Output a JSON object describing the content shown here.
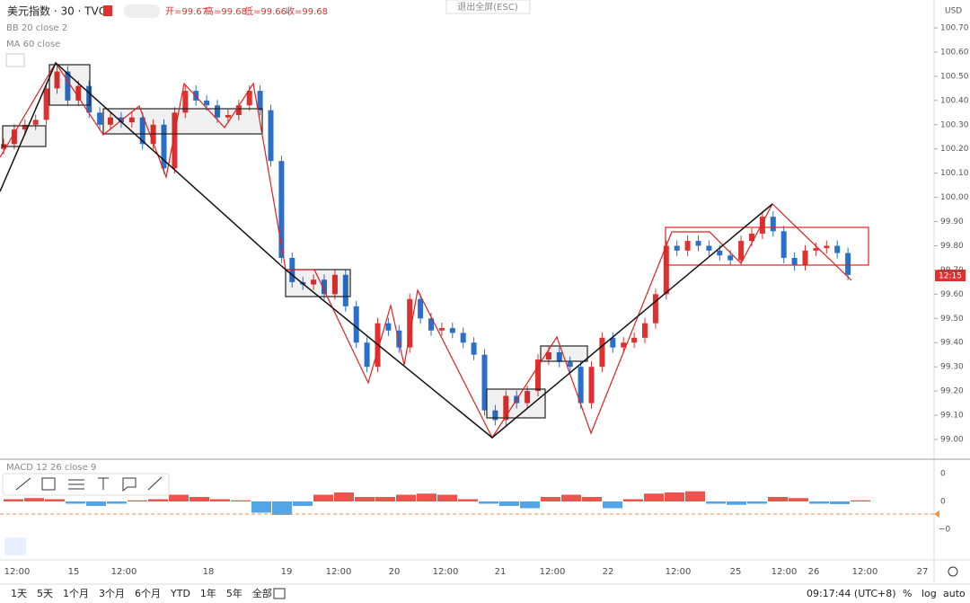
{
  "header": {
    "symbol": "美元指数 · 30 · TVC",
    "open": "开=99.67",
    "high": "高=99.68",
    "low": "低=99.66",
    "close": "收=99.68",
    "exit": "退出全屏(ESC)",
    "currency": "USD"
  },
  "indicators": [
    "BB 20 close 2",
    "MA 60 close",
    "MACD 12 26 close 9"
  ],
  "price_axis": [
    {
      "value": 100.7,
      "label": "100.70"
    },
    {
      "value": 100.6,
      "label": "100.60"
    },
    {
      "value": 100.5,
      "label": "100.50"
    },
    {
      "value": 100.4,
      "label": "100.40"
    },
    {
      "value": 100.3,
      "label": "100.30"
    },
    {
      "value": 100.2,
      "label": "100.20"
    },
    {
      "value": 100.1,
      "label": "100.10"
    },
    {
      "value": 100.0,
      "label": "100.00"
    },
    {
      "value": 99.9,
      "label": "99.90"
    },
    {
      "value": 99.8,
      "label": "99.80"
    },
    {
      "value": 99.7,
      "label": "99.70"
    },
    {
      "value": 99.6,
      "label": "99.60"
    },
    {
      "value": 99.5,
      "label": "99.50"
    },
    {
      "value": 99.4,
      "label": "99.40"
    },
    {
      "value": 99.3,
      "label": "99.30"
    },
    {
      "value": 99.2,
      "label": "99.20"
    },
    {
      "value": 99.1,
      "label": "99.10"
    },
    {
      "value": 99.0,
      "label": "99.00"
    }
  ],
  "price_tag": "12:15",
  "macd_axis": [
    "0",
    "0",
    "−0"
  ],
  "closes": [
    100.22,
    100.28,
    100.3,
    100.32,
    100.45,
    100.52,
    100.4,
    100.46,
    100.35,
    100.3,
    100.33,
    100.31,
    100.33,
    100.22,
    100.3,
    100.12,
    100.35,
    100.44,
    100.4,
    100.38,
    100.33,
    100.34,
    100.38,
    100.44,
    100.36,
    100.15,
    99.75,
    99.65,
    99.64,
    99.66,
    99.6,
    99.68,
    99.55,
    99.4,
    99.3,
    99.48,
    99.45,
    99.38,
    99.58,
    99.5,
    99.45,
    99.46,
    99.44,
    99.4,
    99.35,
    99.12,
    99.08,
    99.18,
    99.15,
    99.2,
    99.33,
    99.36,
    99.32,
    99.3,
    99.15,
    99.3,
    99.42,
    99.38,
    99.4,
    99.42,
    99.48,
    99.6,
    99.8,
    99.78,
    99.82,
    99.8,
    99.78,
    99.76,
    99.74,
    99.82,
    99.85,
    99.92,
    99.86,
    99.75,
    99.72,
    99.78,
    99.79,
    99.8,
    99.77,
    99.68
  ],
  "macd_histogram": [
    0.1,
    0.15,
    0.1,
    -0.1,
    -0.2,
    -0.1,
    0.05,
    0.1,
    0.3,
    0.2,
    0.1,
    0.05,
    -0.5,
    -0.6,
    -0.2,
    0.3,
    0.4,
    0.2,
    0.2,
    0.3,
    0.35,
    0.3,
    0.1,
    -0.1,
    -0.2,
    -0.3,
    0.2,
    0.3,
    0.2,
    -0.3,
    0.1,
    0.35,
    0.4,
    0.45,
    -0.1,
    -0.15,
    -0.1,
    0.2,
    0.15,
    -0.1,
    -0.12,
    0.05
  ],
  "time_axis": [
    {
      "x": 19,
      "label": "12:00"
    },
    {
      "x": 82,
      "label": "15"
    },
    {
      "x": 138,
      "label": "12:00"
    },
    {
      "x": 232,
      "label": "18"
    },
    {
      "x": 319,
      "label": "19"
    },
    {
      "x": 377,
      "label": "12:00"
    },
    {
      "x": 439,
      "label": "20"
    },
    {
      "x": 496,
      "label": "12:00"
    },
    {
      "x": 557,
      "label": "21"
    },
    {
      "x": 615,
      "label": "12:00"
    },
    {
      "x": 677,
      "label": "22"
    },
    {
      "x": 755,
      "label": "12:00"
    },
    {
      "x": 819,
      "label": "25"
    },
    {
      "x": 873,
      "label": "12:00"
    },
    {
      "x": 906,
      "label": "26"
    },
    {
      "x": 963,
      "label": "12:00"
    },
    {
      "x": 1027,
      "label": "27"
    }
  ],
  "ranges": [
    "1天",
    "5天",
    "1个月",
    "3个月",
    "6个月",
    "YTD",
    "1年",
    "5年",
    "全部"
  ],
  "status": {
    "clock": "09:17:44 (UTC+8)",
    "percent": "%",
    "log": "log",
    "auto": "auto"
  }
}
